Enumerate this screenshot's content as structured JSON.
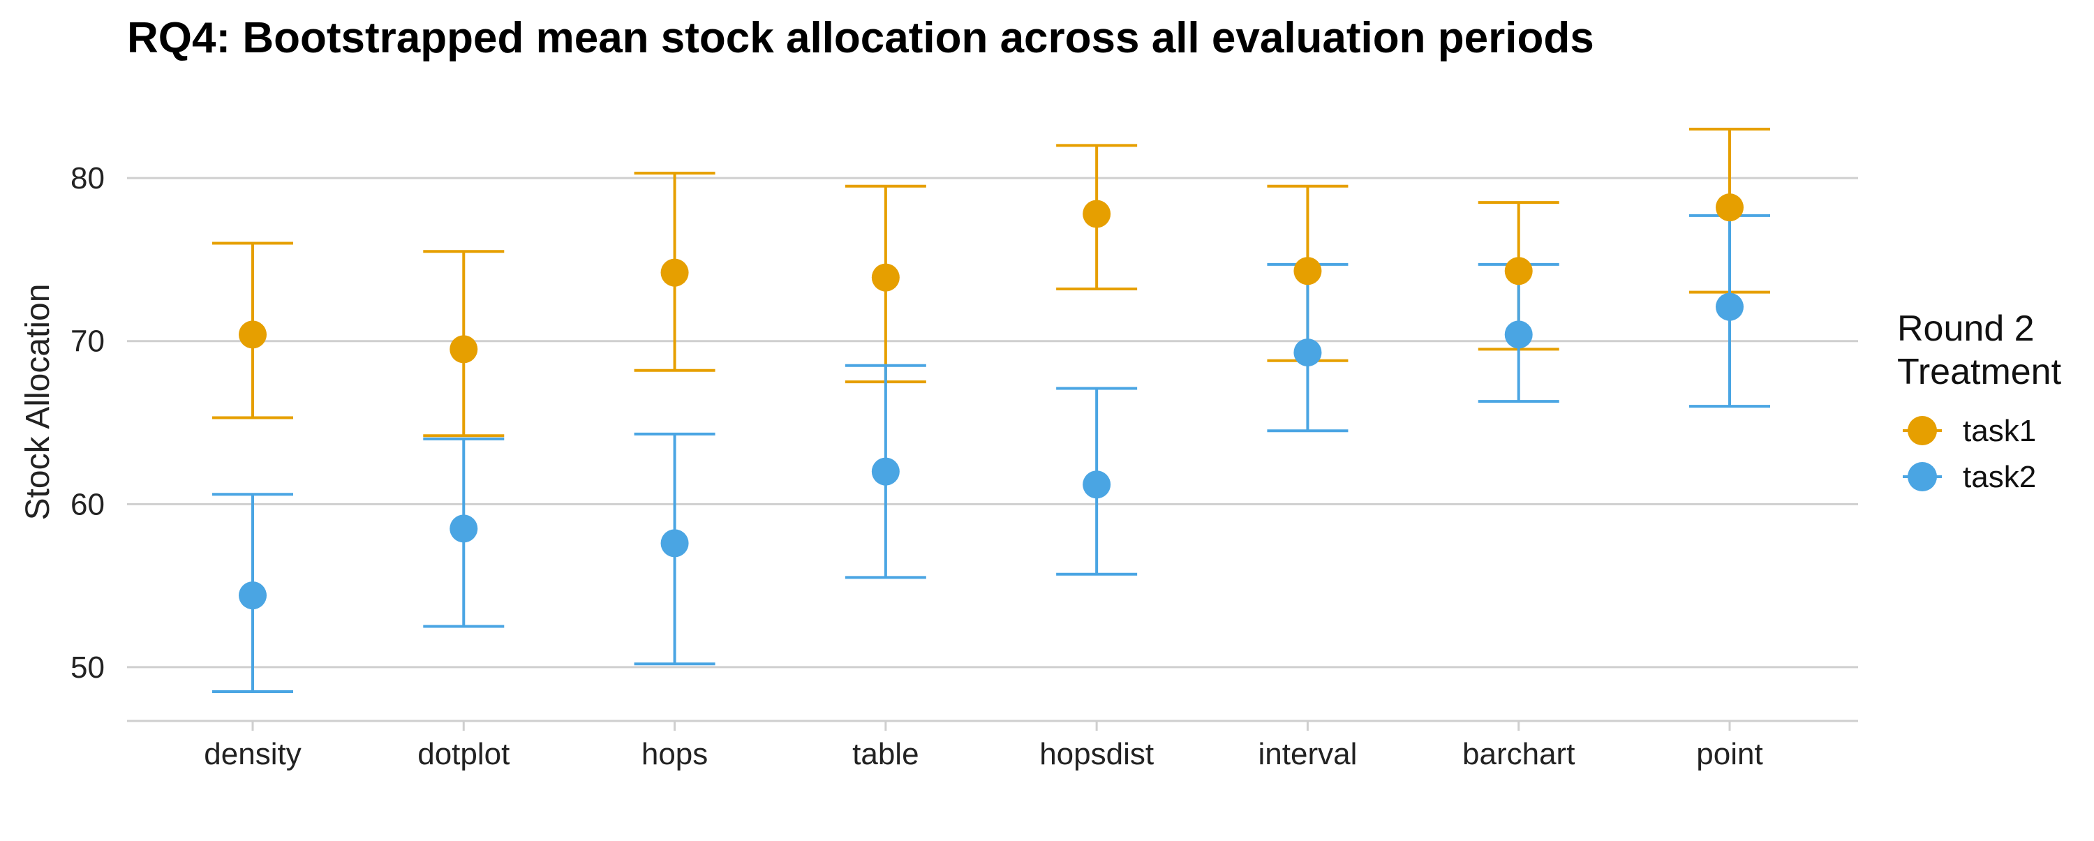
{
  "chart_data": {
    "type": "errorbar",
    "title": "RQ4: Bootstrapped mean stock allocation across all evaluation periods",
    "ylabel": "Stock Allocation",
    "xlabel": "",
    "categories": [
      "density",
      "dotplot",
      "hops",
      "table",
      "hopsdist",
      "interval",
      "barchart",
      "point"
    ],
    "ylim": [
      46.7,
      84.5
    ],
    "yticks": [
      50,
      60,
      70,
      80
    ],
    "grid": true,
    "legend": {
      "title_lines": [
        "Round 2",
        "Treatment"
      ],
      "placement": "right"
    },
    "series": [
      {
        "name": "task1",
        "color": "#E69F00",
        "mean": [
          70.4,
          69.5,
          74.2,
          73.9,
          77.8,
          74.3,
          74.3,
          78.2
        ],
        "lower": [
          65.3,
          64.2,
          68.2,
          67.5,
          73.2,
          68.8,
          69.5,
          73.0
        ],
        "upper": [
          76.0,
          75.5,
          80.3,
          79.5,
          82.0,
          79.5,
          78.5,
          83.0
        ]
      },
      {
        "name": "task2",
        "color": "#4AA5E3",
        "mean": [
          54.4,
          58.5,
          57.6,
          62.0,
          61.2,
          69.3,
          70.4,
          72.1
        ],
        "lower": [
          48.5,
          52.5,
          50.2,
          55.5,
          55.7,
          64.5,
          66.3,
          66.0
        ],
        "upper": [
          60.6,
          64.0,
          64.3,
          68.5,
          67.1,
          74.7,
          74.7,
          77.7
        ]
      }
    ]
  }
}
